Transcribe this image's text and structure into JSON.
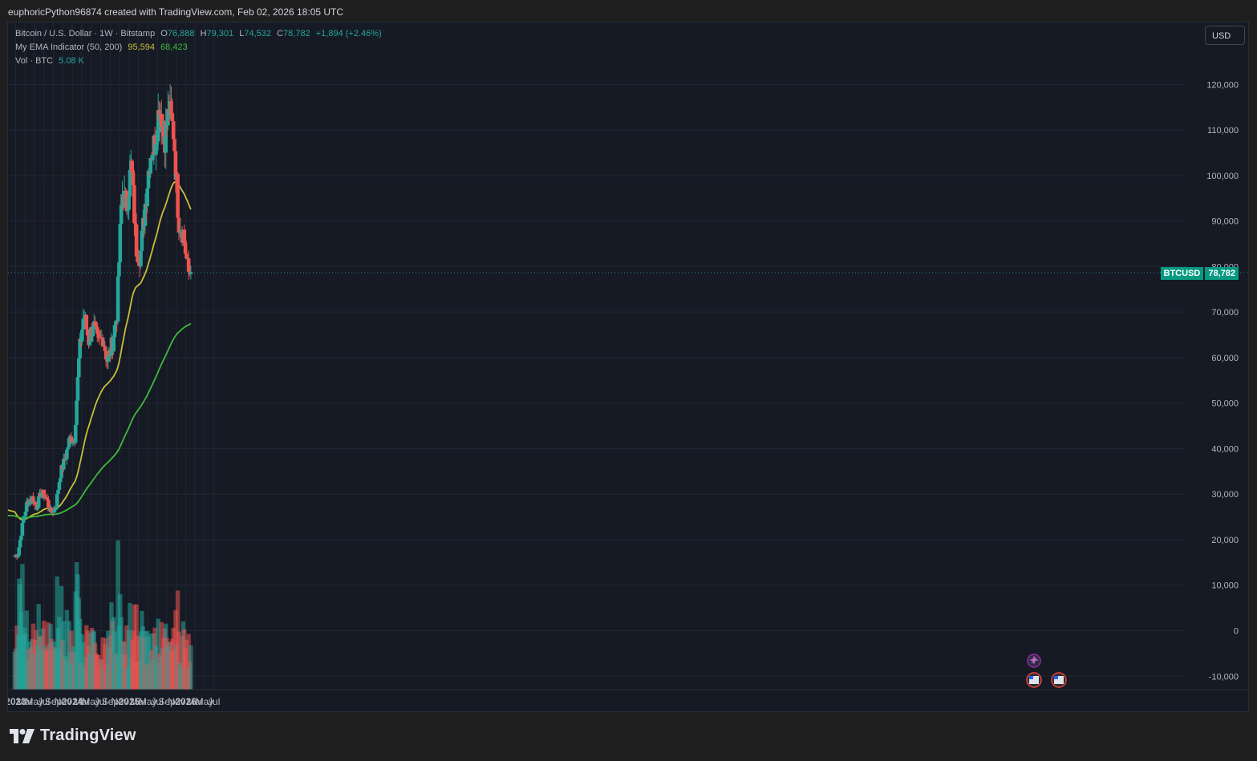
{
  "header": {
    "caption": "euphoricPython96874 created with TradingView.com, Feb 02, 2026 18:05 UTC"
  },
  "legend": {
    "symbol": "Bitcoin / U.S. Dollar · 1W · Bitstamp",
    "open_key": "O",
    "open": "76,888",
    "high_key": "H",
    "high": "79,301",
    "low_key": "L",
    "low": "74,532",
    "close_key": "C",
    "close": "78,782",
    "change": "+1,894 (+2.46%)",
    "indicator_name": "My EMA Indicator (50, 200)",
    "ema_fast": "95,594",
    "ema_slow": "68,423",
    "volume_name": "Vol · BTC",
    "volume": "5.08 K"
  },
  "toolbar": {
    "currency": "USD"
  },
  "price_tag": {
    "symbol": "BTCUSD",
    "value": "78,782"
  },
  "brand": {
    "name": "TradingView"
  },
  "colors": {
    "up": "#26a69a",
    "down": "#ef5350",
    "ema_fast": "#c8bf3a",
    "ema_slow": "#3dbb3a",
    "background": "#161a25"
  },
  "chart_data": {
    "type": "candlestick",
    "title": "Bitcoin / U.S. Dollar · 1W · Bitstamp",
    "y_ticks": [
      "120,000",
      "110,000",
      "100,000",
      "90,000",
      "80,000",
      "70,000",
      "60,000",
      "50,000",
      "40,000",
      "30,000",
      "20,000",
      "10,000",
      "0",
      "-10,000"
    ],
    "x_ticks": [
      "2023",
      "Mar",
      "May",
      "Jul",
      "Sep",
      "Nov",
      "2024",
      "Mar",
      "May",
      "Jul",
      "Sep",
      "Nov",
      "2025",
      "Mar",
      "May",
      "Jul",
      "Sep",
      "Nov",
      "2026",
      "Mar",
      "May",
      "Jul"
    ],
    "ylim": [
      -10000,
      125000
    ],
    "price_series_approx": [
      [
        "2023-01",
        16600
      ],
      [
        "2023-02",
        23500
      ],
      [
        "2023-03",
        28000
      ],
      [
        "2023-04",
        29300
      ],
      [
        "2023-05",
        27200
      ],
      [
        "2023-06",
        30400
      ],
      [
        "2023-07",
        29300
      ],
      [
        "2023-08",
        26000
      ],
      [
        "2023-09",
        27000
      ],
      [
        "2023-10",
        34500
      ],
      [
        "2023-11",
        37700
      ],
      [
        "2023-12",
        42200
      ],
      [
        "2024-01",
        42500
      ],
      [
        "2024-02",
        61000
      ],
      [
        "2024-03",
        69700
      ],
      [
        "2024-04",
        63800
      ],
      [
        "2024-05",
        67500
      ],
      [
        "2024-06",
        62700
      ],
      [
        "2024-07",
        64600
      ],
      [
        "2024-08",
        59000
      ],
      [
        "2024-09",
        63300
      ],
      [
        "2024-10",
        70200
      ],
      [
        "2024-11",
        96400
      ],
      [
        "2024-12",
        93400
      ],
      [
        "2025-01",
        102400
      ],
      [
        "2025-02",
        84300
      ],
      [
        "2025-03",
        82500
      ],
      [
        "2025-04",
        94200
      ],
      [
        "2025-05",
        104600
      ],
      [
        "2025-06",
        107100
      ],
      [
        "2025-07",
        115700
      ],
      [
        "2025-08",
        108200
      ],
      [
        "2025-09",
        114000
      ],
      [
        "2025-10",
        109500
      ],
      [
        "2025-11",
        90400
      ],
      [
        "2025-12",
        87500
      ],
      [
        "2026-01",
        78700
      ]
    ],
    "ema_fast": {
      "name": "My EMA Indicator (50, 200)",
      "last": 95594
    },
    "ema_slow": {
      "last": 68423
    },
    "last_price": 78782
  }
}
